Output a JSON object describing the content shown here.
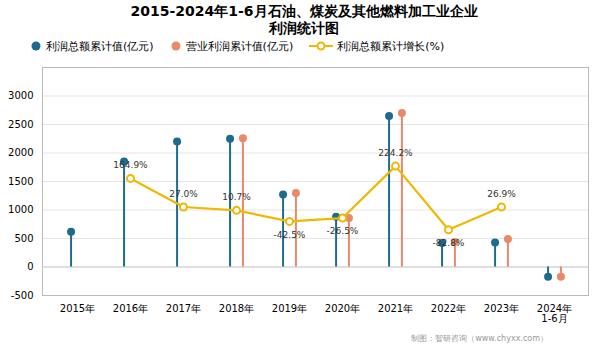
{
  "chart_data": {
    "type": "lollipop",
    "title": "2015-2024年1-6月石油、煤炭及其他燃料加工业企业\n利润统计图",
    "categories": [
      "2015年",
      "2016年",
      "2017年",
      "2018年",
      "2019年",
      "2020年",
      "2021年",
      "2022年",
      "2023年",
      "2024年\n1-6月"
    ],
    "series": [
      {
        "name": "利润总额累计值(亿元)",
        "color": "#1F6B8E",
        "type": "lollipop",
        "marker": "o",
        "values": [
          620,
          1850,
          2200,
          2250,
          1270,
          880,
          2650,
          420,
          430,
          -170
        ]
      },
      {
        "name": "营业利润累计值(亿元)",
        "color": "#E8896A",
        "type": "lollipop",
        "marker": "o",
        "values": [
          null,
          null,
          null,
          2260,
          1300,
          860,
          2700,
          440,
          490,
          -170
        ]
      },
      {
        "name": "利润总额累计增长(%)",
        "color": "#F0B800",
        "type": "line",
        "marker": "o",
        "line_style": "solid",
        "axis": "y2",
        "data_labels": true,
        "values": [
          null,
          164.9,
          27.0,
          10.7,
          -42.5,
          -26.5,
          224.2,
          -82.8,
          26.9,
          null
        ],
        "value_labels": [
          null,
          "164.9%",
          "27.0%",
          "10.7%",
          "-42.5%",
          "-26.5%",
          "224.2%",
          "-82.8%",
          "26.9%",
          null
        ]
      }
    ],
    "ylim": [
      -500,
      3500
    ],
    "yticks": [
      -500,
      0,
      500,
      1000,
      1500,
      2000,
      2500,
      3000
    ],
    "y2lim": [
      -400,
      700
    ],
    "y2ticks": [],
    "grid": true,
    "legend": "top",
    "annotations": [
      "制图：智研咨询（www.chyxx.com）"
    ]
  }
}
